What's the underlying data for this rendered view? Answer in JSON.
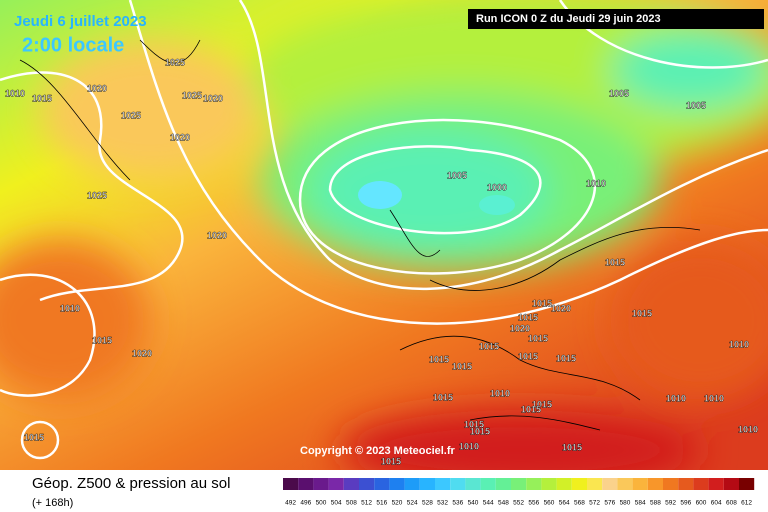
{
  "header": {
    "date": "Jeudi 6 juillet 2023",
    "time": "2:00 locale",
    "run": "Run ICON 0 Z du Jeudi 29 juin 2023",
    "copyright": "Copyright © 2023 Meteociel.fr"
  },
  "footer": {
    "title": "Géop. Z500 & pression au sol",
    "lead": "(+ 168h)"
  },
  "legend": {
    "values": [
      492,
      496,
      500,
      504,
      508,
      512,
      516,
      520,
      524,
      528,
      532,
      536,
      540,
      544,
      548,
      552,
      556,
      560,
      564,
      568,
      572,
      576,
      580,
      584,
      588,
      592,
      596,
      600,
      604,
      608,
      612
    ],
    "colors": [
      "#4b0a4b",
      "#5a0f6e",
      "#6a1a8c",
      "#7a28a8",
      "#5a3cc0",
      "#3c50d2",
      "#2a64e0",
      "#1e80f0",
      "#1e9cf8",
      "#28b4ff",
      "#3cc8ff",
      "#50dcf0",
      "#5ae6d2",
      "#5af0b4",
      "#64f096",
      "#78f078",
      "#96f05a",
      "#b4f03c",
      "#d2f028",
      "#f0f01e",
      "#fae650",
      "#fad28c",
      "#fac85a",
      "#fab43c",
      "#f8962a",
      "#f07820",
      "#e65a1e",
      "#dc3c1e",
      "#d21e1e",
      "#b40a14",
      "#780000"
    ]
  },
  "isobars": [
    "1025",
    "1010",
    "1015",
    "1020",
    "1025",
    "1020",
    "1025",
    "1020",
    "1025",
    "1020",
    "1005",
    "1005",
    "1005",
    "1000",
    "1010",
    "1015",
    "1010",
    "1015",
    "1020",
    "1015",
    "1020",
    "1015",
    "1020",
    "1015",
    "1015",
    "1015",
    "1015",
    "1015",
    "1015",
    "1015",
    "1010",
    "1015",
    "1010",
    "1015",
    "1015",
    "1010",
    "1010",
    "1010",
    "1015",
    "1015",
    "1015",
    "1010",
    "1015",
    "1015"
  ]
}
